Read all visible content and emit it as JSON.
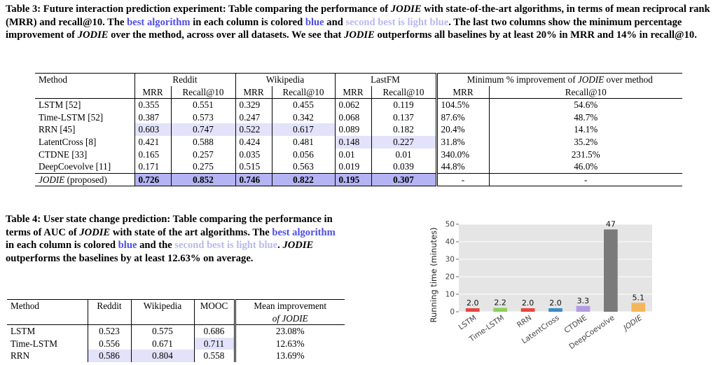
{
  "table3": {
    "caption": {
      "lead": "Table 3: Future interaction prediction experiment: Table comparing the performance of ",
      "jodie": "JODIE",
      "mid": " with state-of-the-art algorithms, in terms of mean reciprocal rank (MRR) and recall@10. The ",
      "best": "best algorithm",
      "mid2": " in each column is colored ",
      "blue": "blue",
      "and": " and ",
      "second": "second best is light blue",
      "rest": ". The last two columns show the minimum percentage improvement of ",
      "jodie2": "JODIE",
      "rest2": " over the method, across over all datasets. We see that ",
      "jodie3": "JODIE",
      "rest3": " outperforms all baselines by at least 20% in MRR and 14% in recall@10."
    },
    "headers": {
      "method": "Method",
      "groups": [
        "Reddit",
        "Wikipedia",
        "LastFM",
        "Minimum % improvement of JODIE over method"
      ],
      "sub": [
        "MRR",
        "Recall@10",
        "MRR",
        "Recall@10",
        "MRR",
        "Recall@10",
        "MRR",
        "Recall@10"
      ]
    },
    "rows": [
      {
        "method": "LSTM [52]",
        "vals": [
          "0.355",
          "0.551",
          "0.329",
          "0.455",
          "0.062",
          "0.119",
          "104.5%",
          "54.6%"
        ]
      },
      {
        "method": "Time-LSTM [52]",
        "vals": [
          "0.387",
          "0.573",
          "0.247",
          "0.342",
          "0.068",
          "0.137",
          "87.6%",
          "48.7%"
        ]
      },
      {
        "method": "RRN [45]",
        "vals": [
          "0.603",
          "0.747",
          "0.522",
          "0.617",
          "0.089",
          "0.182",
          "20.4%",
          "14.1%"
        ]
      },
      {
        "method": "LatentCross [8]",
        "vals": [
          "0.421",
          "0.588",
          "0.424",
          "0.481",
          "0.148",
          "0.227",
          "31.8%",
          "35.2%"
        ]
      },
      {
        "method": "CTDNE [33]",
        "vals": [
          "0.165",
          "0.257",
          "0.035",
          "0.056",
          "0.01",
          "0.01",
          "340.0%",
          "231.5%"
        ]
      },
      {
        "method": "DeepCoevolve [11]",
        "vals": [
          "0.171",
          "0.275",
          "0.515",
          "0.563",
          "0.019",
          "0.039",
          "44.8%",
          "46.0%"
        ]
      }
    ],
    "jodie_row": {
      "method_name": "JODIE",
      "method_suffix": " (proposed)",
      "vals": [
        "0.726",
        "0.852",
        "0.746",
        "0.822",
        "0.195",
        "0.307",
        "-",
        "-"
      ]
    }
  },
  "table4": {
    "caption": {
      "lead": "Table 4: User state change prediction: Table comparing the performance in terms of AUC of ",
      "jodie": "JODIE",
      "mid": " with state of the art algorithms. The ",
      "best": "best algorithm",
      "mid2": " in each column is colored ",
      "blue": "blue",
      "and": " and the ",
      "second": "second best is light blue",
      "rest": ". ",
      "jodie2": "JODIE",
      "rest2": " outperforms the baselines by at least 12.63% on average."
    },
    "headers": [
      "Method",
      "Reddit",
      "Wikipedia",
      "MOOC",
      "Mean improvement",
      "of JODIE"
    ],
    "rows": [
      {
        "method": "LSTM",
        "vals": [
          "0.523",
          "0.575",
          "0.686",
          "23.08%"
        ]
      },
      {
        "method": "Time-LSTM",
        "vals": [
          "0.556",
          "0.671",
          "0.711",
          "12.63%"
        ]
      },
      {
        "method": "RRN",
        "vals": [
          "0.586",
          "0.804",
          "0.558",
          "13.69%"
        ]
      }
    ]
  },
  "chart_data": {
    "type": "bar",
    "title": "",
    "xlabel": "",
    "ylabel": "Running time (minutes)",
    "categories": [
      "LSTM",
      "Time-LSTM",
      "RRN",
      "LatentCross",
      "CTDNE",
      "DeepCoevolve",
      "JODIE"
    ],
    "values": [
      2.0,
      2.2,
      2.0,
      2.0,
      3.3,
      47,
      5.1
    ],
    "value_labels": [
      "2.0",
      "2.2",
      "2.0",
      "2.0",
      "3.3",
      "47",
      "5.1"
    ],
    "colors": [
      "#e8463c",
      "#8ccf59",
      "#e8463c",
      "#3a8bc4",
      "#b49be0",
      "#7a7a7a",
      "#f5b65a"
    ],
    "yticks": [
      "0",
      "10",
      "20",
      "30",
      "40",
      "50"
    ],
    "ylim": [
      0,
      50
    ],
    "grid": true
  }
}
